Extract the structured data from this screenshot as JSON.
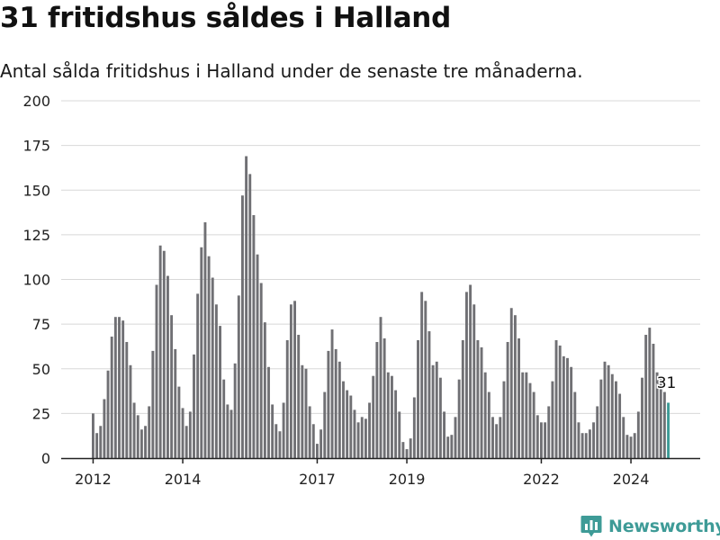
{
  "title": "31 fritidshus såldes i Halland",
  "subtitle": "Antal sålda fritidshus i Halland under de senaste tre månaderna.",
  "brand": {
    "name": "Newsworthy",
    "icon": "newsworthy-logo-icon",
    "color": "#3e9b97"
  },
  "colors": {
    "bar": "#707074",
    "highlight": "#3e9b97",
    "grid": "#d8d8d8",
    "axis": "#222222"
  },
  "chart_data": {
    "type": "bar",
    "title": "31 fritidshus såldes i Halland",
    "xlabel": "",
    "ylabel": "",
    "ylim": [
      0,
      200
    ],
    "y_ticks": [
      0,
      25,
      50,
      75,
      100,
      125,
      150,
      175,
      200
    ],
    "grid": true,
    "x_tick_labels": [
      {
        "label": "2012",
        "at_index": 0
      },
      {
        "label": "2014",
        "at_index": 24
      },
      {
        "label": "2017",
        "at_index": 60
      },
      {
        "label": "2019",
        "at_index": 84
      },
      {
        "label": "2022",
        "at_index": 120
      },
      {
        "label": "2024",
        "at_index": 144
      }
    ],
    "values": [
      25,
      14,
      18,
      33,
      49,
      68,
      79,
      79,
      77,
      65,
      52,
      31,
      24,
      16,
      18,
      29,
      60,
      97,
      119,
      116,
      102,
      80,
      61,
      40,
      28,
      18,
      26,
      58,
      92,
      118,
      132,
      113,
      101,
      86,
      74,
      44,
      30,
      27,
      53,
      91,
      147,
      169,
      159,
      136,
      114,
      98,
      76,
      51,
      30,
      19,
      15,
      31,
      66,
      86,
      88,
      69,
      52,
      50,
      29,
      19,
      8,
      16,
      37,
      60,
      72,
      61,
      54,
      43,
      38,
      35,
      27,
      20,
      23,
      22,
      31,
      46,
      65,
      79,
      67,
      48,
      46,
      38,
      26,
      9,
      5,
      11,
      34,
      66,
      93,
      88,
      71,
      52,
      54,
      45,
      26,
      12,
      13,
      23,
      44,
      66,
      93,
      97,
      86,
      66,
      62,
      48,
      37,
      23,
      19,
      23,
      43,
      65,
      84,
      80,
      67,
      48,
      48,
      42,
      37,
      24,
      20,
      20,
      29,
      43,
      66,
      63,
      57,
      56,
      51,
      37,
      20,
      14,
      14,
      16,
      20,
      29,
      44,
      54,
      52,
      47,
      43,
      36,
      23,
      13,
      12,
      14,
      26,
      45,
      69,
      73,
      64,
      48,
      45,
      37,
      31
    ],
    "highlight_index": 154,
    "highlight_label": "31"
  }
}
